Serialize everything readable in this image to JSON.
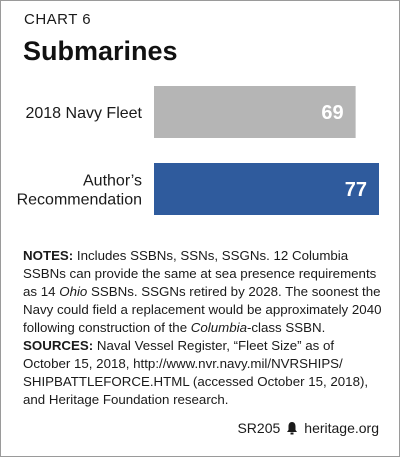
{
  "header": {
    "kicker": "CHART 6",
    "title": "Submarines"
  },
  "chart_data": {
    "type": "bar",
    "orientation": "horizontal",
    "categories": [
      "2018 Navy Fleet",
      "Author’s Recommendation"
    ],
    "category_lines": [
      [
        "2018 Navy Fleet"
      ],
      [
        "Author’s",
        "Recommendation"
      ]
    ],
    "values": [
      69,
      77
    ],
    "colors": [
      "#b5b5b5",
      "#2f5b9d"
    ],
    "label_color": "#ffffff",
    "xlim": [
      0,
      77
    ],
    "grid": false,
    "legend": "none"
  },
  "notes": {
    "notes_label": "NOTES:",
    "notes_text_1": " Includes SSBNs, SSNs, SSGNs. 12 Columbia SSBNs can provide the same at sea presence requirements as 14 ",
    "notes_italic_1": "Ohio",
    "notes_text_2": " SSBNs. SSGNs retired by 2028. The soonest the Navy could field a replacement would be approximately 2040 following construction of the ",
    "notes_italic_2": "Columbia",
    "notes_text_3": "-class SSBN.",
    "sources_label": "SOURCES:",
    "sources_text": " Naval Vessel Register, “Fleet Size” as of October 15, 2018, http://www.nvr.navy.mil/NVRSHIPS/ SHIPBATTLEFORCE.HTML (accessed October 15, 2018), and Heritage Foundation research."
  },
  "footer": {
    "report_id": "SR205",
    "site": "heritage.org",
    "icon": "bell-icon"
  }
}
